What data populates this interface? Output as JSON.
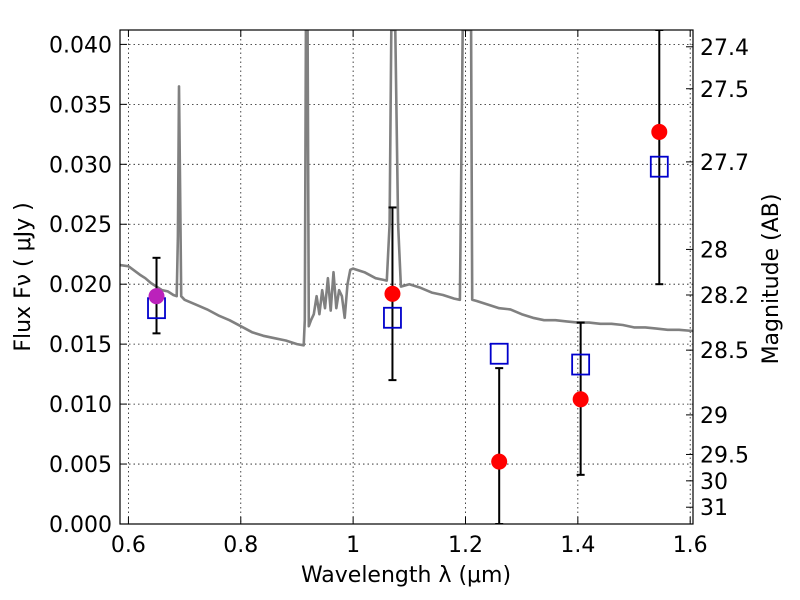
{
  "chart_data": {
    "type": "scatter",
    "xlabel": "Wavelength  λ (μm)",
    "ylabel": "Flux  Fν  ( μJy )",
    "ylabel_right": "Magnitude (AB)",
    "xlim": [
      0.585,
      1.605
    ],
    "ylim": [
      0.0,
      0.0412
    ],
    "grid": true,
    "colors": {
      "sed": "#808080",
      "observed": "#ff0000",
      "highlight": "#bb22bb",
      "model": "#0000cc",
      "errorbar": "#000000"
    },
    "x_ticks": [
      {
        "value": 0.6,
        "label": "0.6"
      },
      {
        "value": 0.8,
        "label": "0.8"
      },
      {
        "value": 1.0,
        "label": "1"
      },
      {
        "value": 1.2,
        "label": "1.2"
      },
      {
        "value": 1.4,
        "label": "1.4"
      },
      {
        "value": 1.6,
        "label": "1.6"
      }
    ],
    "y_ticks": [
      {
        "value": 0.0,
        "label": "0.000"
      },
      {
        "value": 0.005,
        "label": "0.005"
      },
      {
        "value": 0.01,
        "label": "0.010"
      },
      {
        "value": 0.015,
        "label": "0.015"
      },
      {
        "value": 0.02,
        "label": "0.020"
      },
      {
        "value": 0.025,
        "label": "0.025"
      },
      {
        "value": 0.03,
        "label": "0.030"
      },
      {
        "value": 0.035,
        "label": "0.035"
      },
      {
        "value": 0.04,
        "label": "0.040"
      }
    ],
    "right_ticks": [
      {
        "label": "27.4",
        "flux": 0.0398
      },
      {
        "label": "27.5",
        "flux": 0.0363
      },
      {
        "label": "27.7",
        "flux": 0.0302
      },
      {
        "label": "28",
        "flux": 0.0229
      },
      {
        "label": "28.2",
        "flux": 0.0191
      },
      {
        "label": "28.5",
        "flux": 0.0145
      },
      {
        "label": "29",
        "flux": 0.0091
      },
      {
        "label": "29.5",
        "flux": 0.0058
      },
      {
        "label": "30",
        "flux": 0.0036
      },
      {
        "label": "31",
        "flux": 0.0014
      }
    ],
    "observed": [
      {
        "x": 0.65,
        "y": 0.019,
        "err_low": 0.0159,
        "err_high": 0.0222,
        "highlight": true
      },
      {
        "x": 1.07,
        "y": 0.0192,
        "err_low": 0.012,
        "err_high": 0.0264
      },
      {
        "x": 1.26,
        "y": 0.0052,
        "err_low": 0.0,
        "err_high": 0.013
      },
      {
        "x": 1.405,
        "y": 0.0104,
        "err_low": 0.0041,
        "err_high": 0.0168
      },
      {
        "x": 1.545,
        "y": 0.0327,
        "err_low": 0.02,
        "err_high": 0.0412
      }
    ],
    "model": [
      {
        "x": 0.65,
        "y": 0.018
      },
      {
        "x": 1.07,
        "y": 0.0172
      },
      {
        "x": 1.26,
        "y": 0.0142
      },
      {
        "x": 1.405,
        "y": 0.0133
      },
      {
        "x": 1.545,
        "y": 0.0298
      }
    ],
    "sed": [
      [
        0.585,
        0.0216
      ],
      [
        0.6,
        0.0215
      ],
      [
        0.62,
        0.0208
      ],
      [
        0.63,
        0.0205
      ],
      [
        0.64,
        0.0201
      ],
      [
        0.65,
        0.0198
      ],
      [
        0.66,
        0.0195
      ],
      [
        0.67,
        0.0194
      ],
      [
        0.68,
        0.0191
      ],
      [
        0.686,
        0.019
      ],
      [
        0.688,
        0.024
      ],
      [
        0.69,
        0.0365
      ],
      [
        0.692,
        0.028
      ],
      [
        0.694,
        0.019
      ],
      [
        0.7,
        0.0187
      ],
      [
        0.72,
        0.0183
      ],
      [
        0.74,
        0.0179
      ],
      [
        0.76,
        0.0174
      ],
      [
        0.78,
        0.017
      ],
      [
        0.8,
        0.0165
      ],
      [
        0.82,
        0.016
      ],
      [
        0.84,
        0.0157
      ],
      [
        0.86,
        0.0155
      ],
      [
        0.88,
        0.0153
      ],
      [
        0.9,
        0.015
      ],
      [
        0.912,
        0.0149
      ],
      [
        0.914,
        0.017
      ],
      [
        0.916,
        0.0412
      ],
      [
        0.919,
        0.0412
      ],
      [
        0.921,
        0.0165
      ],
      [
        0.925,
        0.017
      ],
      [
        0.93,
        0.0175
      ],
      [
        0.935,
        0.019
      ],
      [
        0.94,
        0.0175
      ],
      [
        0.945,
        0.0195
      ],
      [
        0.95,
        0.018
      ],
      [
        0.955,
        0.0205
      ],
      [
        0.96,
        0.0178
      ],
      [
        0.965,
        0.021
      ],
      [
        0.97,
        0.018
      ],
      [
        0.975,
        0.0195
      ],
      [
        0.98,
        0.019
      ],
      [
        0.985,
        0.0172
      ],
      [
        0.99,
        0.02
      ],
      [
        0.995,
        0.0212
      ],
      [
        1.0,
        0.0213
      ],
      [
        1.02,
        0.021
      ],
      [
        1.04,
        0.0205
      ],
      [
        1.06,
        0.0203
      ],
      [
        1.065,
        0.025
      ],
      [
        1.068,
        0.0412
      ],
      [
        1.075,
        0.0412
      ],
      [
        1.08,
        0.025
      ],
      [
        1.085,
        0.0198
      ],
      [
        1.1,
        0.02
      ],
      [
        1.12,
        0.0197
      ],
      [
        1.14,
        0.0193
      ],
      [
        1.16,
        0.0191
      ],
      [
        1.18,
        0.0188
      ],
      [
        1.19,
        0.0187
      ],
      [
        1.195,
        0.0412
      ],
      [
        1.21,
        0.0412
      ],
      [
        1.212,
        0.0187
      ],
      [
        1.22,
        0.0186
      ],
      [
        1.24,
        0.0183
      ],
      [
        1.26,
        0.018
      ],
      [
        1.28,
        0.0179
      ],
      [
        1.3,
        0.0175
      ],
      [
        1.32,
        0.0172
      ],
      [
        1.34,
        0.017
      ],
      [
        1.36,
        0.017
      ],
      [
        1.38,
        0.0169
      ],
      [
        1.4,
        0.0168
      ],
      [
        1.42,
        0.0168
      ],
      [
        1.44,
        0.0167
      ],
      [
        1.46,
        0.0167
      ],
      [
        1.48,
        0.0166
      ],
      [
        1.5,
        0.0164
      ],
      [
        1.52,
        0.0164
      ],
      [
        1.54,
        0.0163
      ],
      [
        1.56,
        0.0162
      ],
      [
        1.58,
        0.0162
      ],
      [
        1.605,
        0.0161
      ]
    ]
  }
}
